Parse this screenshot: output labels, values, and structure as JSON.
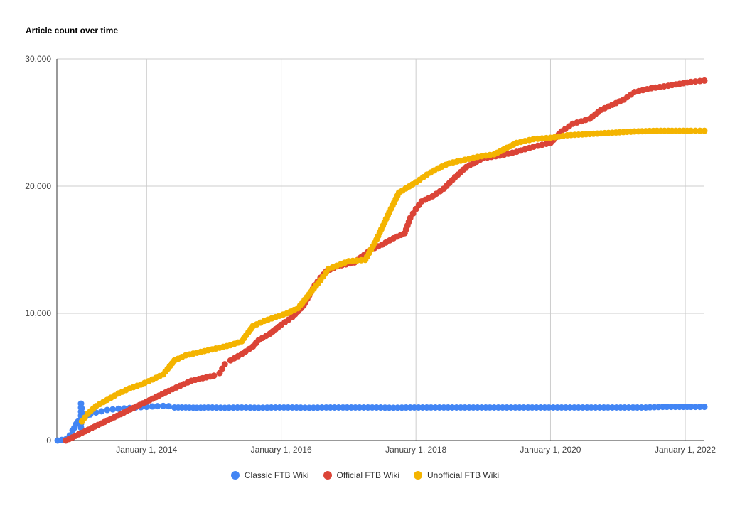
{
  "chart_data": {
    "type": "scatter",
    "title": "Article count over time",
    "xlabel": "",
    "ylabel": "",
    "x_axis": {
      "type": "date",
      "range": [
        "2012-09-01",
        "2022-04-15"
      ],
      "ticks": [
        "2014-01-01",
        "2016-01-01",
        "2018-01-01",
        "2020-01-01",
        "2022-01-01"
      ],
      "tick_labels": [
        "January 1, 2014",
        "January 1, 2016",
        "January 1, 2018",
        "January 1, 2020",
        "January 1, 2022"
      ]
    },
    "y_axis": {
      "range": [
        0,
        30000
      ],
      "ticks": [
        0,
        10000,
        20000,
        30000
      ],
      "tick_labels": [
        "0",
        "10,000",
        "20,000",
        "30,000"
      ]
    },
    "grid": true,
    "legend_position": "bottom",
    "series": [
      {
        "name": "Classic FTB Wiki",
        "color": "#4285f4",
        "points": [
          [
            "2012-09-05",
            0
          ],
          [
            "2012-10-20",
            100
          ],
          [
            "2012-11-10",
            400
          ],
          [
            "2012-11-25",
            800
          ],
          [
            "2012-12-05",
            1000
          ],
          [
            "2012-12-15",
            1300
          ],
          [
            "2012-12-25",
            1500
          ],
          [
            "2013-01-05",
            1600
          ],
          [
            "2013-01-10",
            1000
          ],
          [
            "2013-01-10",
            2900
          ],
          [
            "2013-01-20",
            1800
          ],
          [
            "2013-02-10",
            1950
          ],
          [
            "2013-03-01",
            2050
          ],
          [
            "2013-04-01",
            2200
          ],
          [
            "2013-05-01",
            2300
          ],
          [
            "2013-06-01",
            2400
          ],
          [
            "2013-07-01",
            2450
          ],
          [
            "2013-08-01",
            2500
          ],
          [
            "2013-09-01",
            2530
          ],
          [
            "2013-10-01",
            2560
          ],
          [
            "2013-11-01",
            2590
          ],
          [
            "2013-12-01",
            2620
          ],
          [
            "2014-01-01",
            2650
          ],
          [
            "2014-02-01",
            2680
          ],
          [
            "2014-03-01",
            2700
          ],
          [
            "2014-04-01",
            2720
          ],
          [
            "2014-05-01",
            2700
          ],
          [
            "2014-06-01",
            2600
          ],
          [
            "2014-08-01",
            2600
          ],
          [
            "2014-10-01",
            2580
          ],
          [
            "2014-12-01",
            2600
          ],
          [
            "2015-03-01",
            2580
          ],
          [
            "2015-06-01",
            2600
          ],
          [
            "2015-09-01",
            2580
          ],
          [
            "2015-12-01",
            2600
          ],
          [
            "2016-03-01",
            2600
          ],
          [
            "2016-06-01",
            2580
          ],
          [
            "2016-09-01",
            2600
          ],
          [
            "2016-12-01",
            2600
          ],
          [
            "2017-03-01",
            2600
          ],
          [
            "2017-06-01",
            2600
          ],
          [
            "2017-09-01",
            2580
          ],
          [
            "2017-12-01",
            2600
          ],
          [
            "2018-03-01",
            2600
          ],
          [
            "2018-06-01",
            2600
          ],
          [
            "2018-09-01",
            2600
          ],
          [
            "2018-12-01",
            2600
          ],
          [
            "2019-03-01",
            2600
          ],
          [
            "2019-06-01",
            2600
          ],
          [
            "2019-09-01",
            2600
          ],
          [
            "2019-12-01",
            2600
          ],
          [
            "2020-03-01",
            2600
          ],
          [
            "2020-06-01",
            2600
          ],
          [
            "2020-09-01",
            2600
          ],
          [
            "2020-12-01",
            2600
          ],
          [
            "2021-03-01",
            2600
          ],
          [
            "2021-06-01",
            2600
          ],
          [
            "2021-09-01",
            2650
          ],
          [
            "2021-12-01",
            2650
          ],
          [
            "2022-02-01",
            2650
          ],
          [
            "2022-04-15",
            2650
          ]
        ]
      },
      {
        "name": "Official FTB Wiki",
        "color": "#db4437",
        "points": [
          [
            "2012-10-20",
            0
          ],
          [
            "2014-05-01",
            3900
          ],
          [
            "2014-07-01",
            4300
          ],
          [
            "2014-09-01",
            4700
          ],
          [
            "2014-11-01",
            4900
          ],
          [
            "2015-01-01",
            5100
          ],
          [
            "2015-02-01",
            5300
          ],
          [
            "2015-03-01",
            6000
          ],
          [
            "2015-04-01",
            6300
          ],
          [
            "2015-06-01",
            6800
          ],
          [
            "2015-08-01",
            7400
          ],
          [
            "2015-09-01",
            7900
          ],
          [
            "2015-11-01",
            8400
          ],
          [
            "2016-01-01",
            9100
          ],
          [
            "2016-03-01",
            9700
          ],
          [
            "2016-05-01",
            10600
          ],
          [
            "2016-06-01",
            11400
          ],
          [
            "2016-07-01",
            12200
          ],
          [
            "2016-08-01",
            12800
          ],
          [
            "2016-09-01",
            13300
          ],
          [
            "2016-11-01",
            13700
          ],
          [
            "2017-02-01",
            14000
          ],
          [
            "2017-05-01",
            15000
          ],
          [
            "2017-07-01",
            15400
          ],
          [
            "2017-09-01",
            15900
          ],
          [
            "2017-11-01",
            16300
          ],
          [
            "2017-12-01",
            17500
          ],
          [
            "2018-01-01",
            18200
          ],
          [
            "2018-02-01",
            18800
          ],
          [
            "2018-04-01",
            19200
          ],
          [
            "2018-06-01",
            19800
          ],
          [
            "2018-08-01",
            20700
          ],
          [
            "2018-10-01",
            21500
          ],
          [
            "2019-01-01",
            22200
          ],
          [
            "2019-04-01",
            22400
          ],
          [
            "2019-07-01",
            22700
          ],
          [
            "2019-10-01",
            23100
          ],
          [
            "2020-01-01",
            23400
          ],
          [
            "2020-03-01",
            24300
          ],
          [
            "2020-05-01",
            24900
          ],
          [
            "2020-08-01",
            25300
          ],
          [
            "2020-10-01",
            26000
          ],
          [
            "2020-12-01",
            26400
          ],
          [
            "2021-02-01",
            26800
          ],
          [
            "2021-04-01",
            27400
          ],
          [
            "2021-07-01",
            27700
          ],
          [
            "2021-10-01",
            27900
          ],
          [
            "2022-02-01",
            28200
          ],
          [
            "2022-04-15",
            28300
          ]
        ]
      },
      {
        "name": "Unofficial FTB Wiki",
        "color": "#f4b400",
        "points": [
          [
            "2013-01-15",
            1500
          ],
          [
            "2013-02-15",
            2100
          ],
          [
            "2013-04-01",
            2700
          ],
          [
            "2013-06-01",
            3200
          ],
          [
            "2013-08-01",
            3700
          ],
          [
            "2013-10-01",
            4100
          ],
          [
            "2013-12-01",
            4400
          ],
          [
            "2014-02-01",
            4800
          ],
          [
            "2014-04-01",
            5200
          ],
          [
            "2014-06-01",
            6300
          ],
          [
            "2014-08-01",
            6700
          ],
          [
            "2014-10-01",
            6900
          ],
          [
            "2014-12-01",
            7100
          ],
          [
            "2015-02-01",
            7300
          ],
          [
            "2015-04-01",
            7500
          ],
          [
            "2015-06-01",
            7800
          ],
          [
            "2015-08-01",
            9000
          ],
          [
            "2015-10-01",
            9400
          ],
          [
            "2015-12-01",
            9700
          ],
          [
            "2016-02-01",
            10000
          ],
          [
            "2016-04-01",
            10400
          ],
          [
            "2016-06-01",
            11500
          ],
          [
            "2016-08-01",
            12600
          ],
          [
            "2016-09-15",
            13500
          ],
          [
            "2017-01-01",
            14100
          ],
          [
            "2017-04-01",
            14200
          ],
          [
            "2017-06-01",
            15800
          ],
          [
            "2017-08-01",
            17700
          ],
          [
            "2017-10-01",
            19500
          ],
          [
            "2018-01-01",
            20300
          ],
          [
            "2018-03-01",
            20900
          ],
          [
            "2018-05-01",
            21400
          ],
          [
            "2018-07-01",
            21800
          ],
          [
            "2018-09-01",
            22000
          ],
          [
            "2018-12-01",
            22300
          ],
          [
            "2019-03-01",
            22500
          ],
          [
            "2019-07-01",
            23400
          ],
          [
            "2019-10-01",
            23700
          ],
          [
            "2020-01-01",
            23800
          ],
          [
            "2020-04-01",
            24000
          ],
          [
            "2020-08-01",
            24100
          ],
          [
            "2020-12-01",
            24200
          ],
          [
            "2021-04-01",
            24300
          ],
          [
            "2021-08-01",
            24350
          ],
          [
            "2021-12-01",
            24350
          ],
          [
            "2022-02-01",
            24350
          ],
          [
            "2022-04-15",
            24350
          ]
        ]
      }
    ]
  }
}
